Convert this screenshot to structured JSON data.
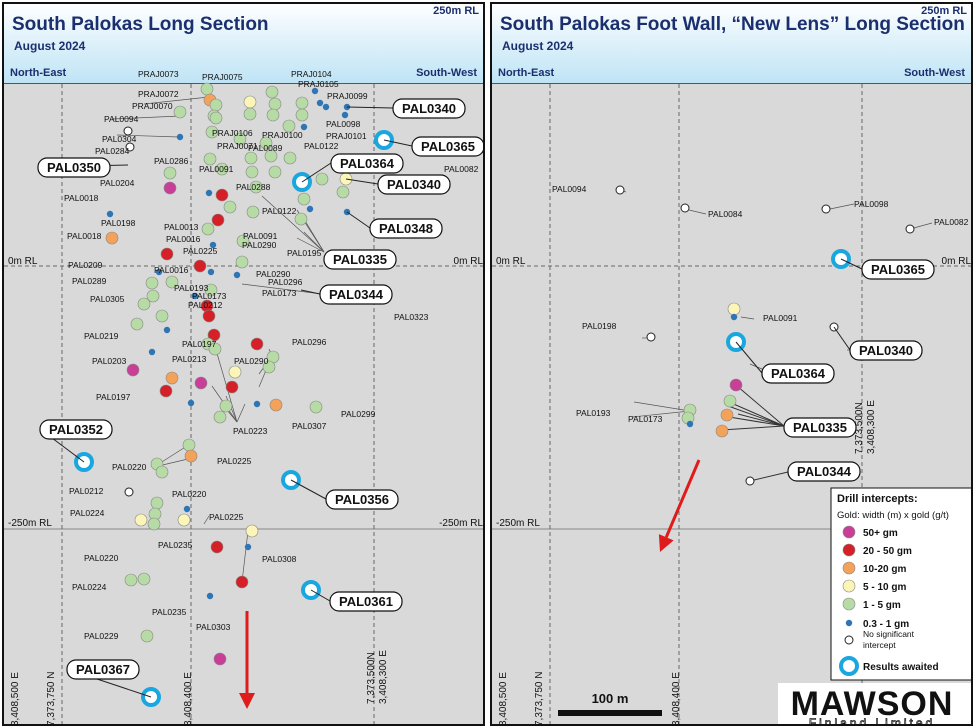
{
  "left": {
    "title": "South Palokas Long Section",
    "subtitle": "August 2024",
    "rl_top": "250m RL",
    "dir_left": "North-East",
    "dir_right": "South-West",
    "rl_zero": "0m RL",
    "rl_minus": "-250m RL",
    "grid_labels": [
      "3,408,500 E",
      "7,373,750 N",
      "3,408,400 E",
      "7,373,500N",
      "3,408,300 E"
    ],
    "small_labels": [
      "PRAJ0073",
      "PRAJ0075",
      "PRAJ0104",
      "PRAJ0105",
      "PRAJ0072",
      "PRAJ0070",
      "PRAJ0099",
      "PAL0098",
      "PAL0094",
      "PAL0304",
      "PAL0284",
      "PRAJ0106",
      "PRAJ0100",
      "PRAJ0101",
      "PRAJ0071",
      "PAL0089",
      "PAL0122",
      "PAL0082",
      "PAL0286",
      "PAL0091",
      "PAL0204",
      "PAL0288",
      "PAL0018",
      "PAL0198",
      "PAL0013",
      "PAL0122",
      "PAL0018",
      "PAL0016",
      "PAL0091",
      "PAL0290",
      "PAL0225",
      "PAL0195",
      "PAL0209",
      "PAL0016",
      "PAL0290",
      "PAL0289",
      "PAL0296",
      "PAL0193",
      "PAL0173",
      "PAL0305",
      "PAL0173",
      "PAL0212",
      "PAL0323",
      "PAL0219",
      "PAL0197",
      "PAL0296",
      "PAL0203",
      "PAL0213",
      "PAL0290",
      "PAL0197",
      "PAL0299",
      "PAL0223",
      "PAL0307",
      "PAL0220",
      "PAL0225",
      "PAL0212",
      "PAL0220",
      "PAL0224",
      "PAL0225",
      "PAL0235",
      "PAL0308",
      "PAL0220",
      "PAL0224",
      "PAL0235",
      "PAL0303",
      "PAL0229"
    ],
    "callouts": [
      "PAL0340",
      "PAL0365",
      "PAL0350",
      "PAL0364",
      "PAL0340",
      "PAL0348",
      "PAL0335",
      "PAL0344",
      "PAL0352",
      "PAL0356",
      "PAL0361",
      "PAL0367"
    ]
  },
  "right": {
    "title": "South Palokas Foot Wall, “New Lens” Long Section",
    "subtitle": "August 2024",
    "rl_top": "250m RL",
    "dir_left": "North-East",
    "dir_right": "South-West",
    "rl_zero": "0m RL",
    "rl_minus": "-250m RL",
    "grid_labels": [
      "3,408,500 E",
      "7,373,750 N",
      "3,408,400 E",
      "7,373,500N",
      "3,408,300 E"
    ],
    "small_labels": [
      "PAL0094",
      "PAL0084",
      "PAL0098",
      "PAL0082",
      "PAL0091",
      "PAL0198",
      "PAL0193",
      "PAL0173"
    ],
    "callouts": [
      "PAL0365",
      "PAL0340",
      "PAL0364",
      "PAL0335",
      "PAL0344"
    ],
    "scale_label": "100 m"
  },
  "legend": {
    "title": "Drill intercepts:",
    "subtitle": "Gold: width (m) x gold (g/t)",
    "items": [
      {
        "label": "50+ gm",
        "color": "#c93f98"
      },
      {
        "label": "20 - 50 gm",
        "color": "#d42026"
      },
      {
        "label": "10-20 gm",
        "color": "#f4a259"
      },
      {
        "label": "5 - 10 gm",
        "color": "#fbf5b8"
      },
      {
        "label": "1 - 5 gm",
        "color": "#b7dba5"
      },
      {
        "label": "0.3 - 1 gm",
        "color": "#2e75b6"
      },
      {
        "label": "No significant intercept",
        "color": "#ffffff"
      },
      {
        "label": "Results awaited",
        "color": "#1aa7e0"
      }
    ]
  },
  "logo": {
    "main": "MAWSON",
    "sub": "Finland Limited"
  },
  "colors": {
    "title": "#1b2f6e",
    "arrow": "#e01b1b",
    "awaited": "#1aa7e0",
    "panel": "#d9d9d9"
  }
}
